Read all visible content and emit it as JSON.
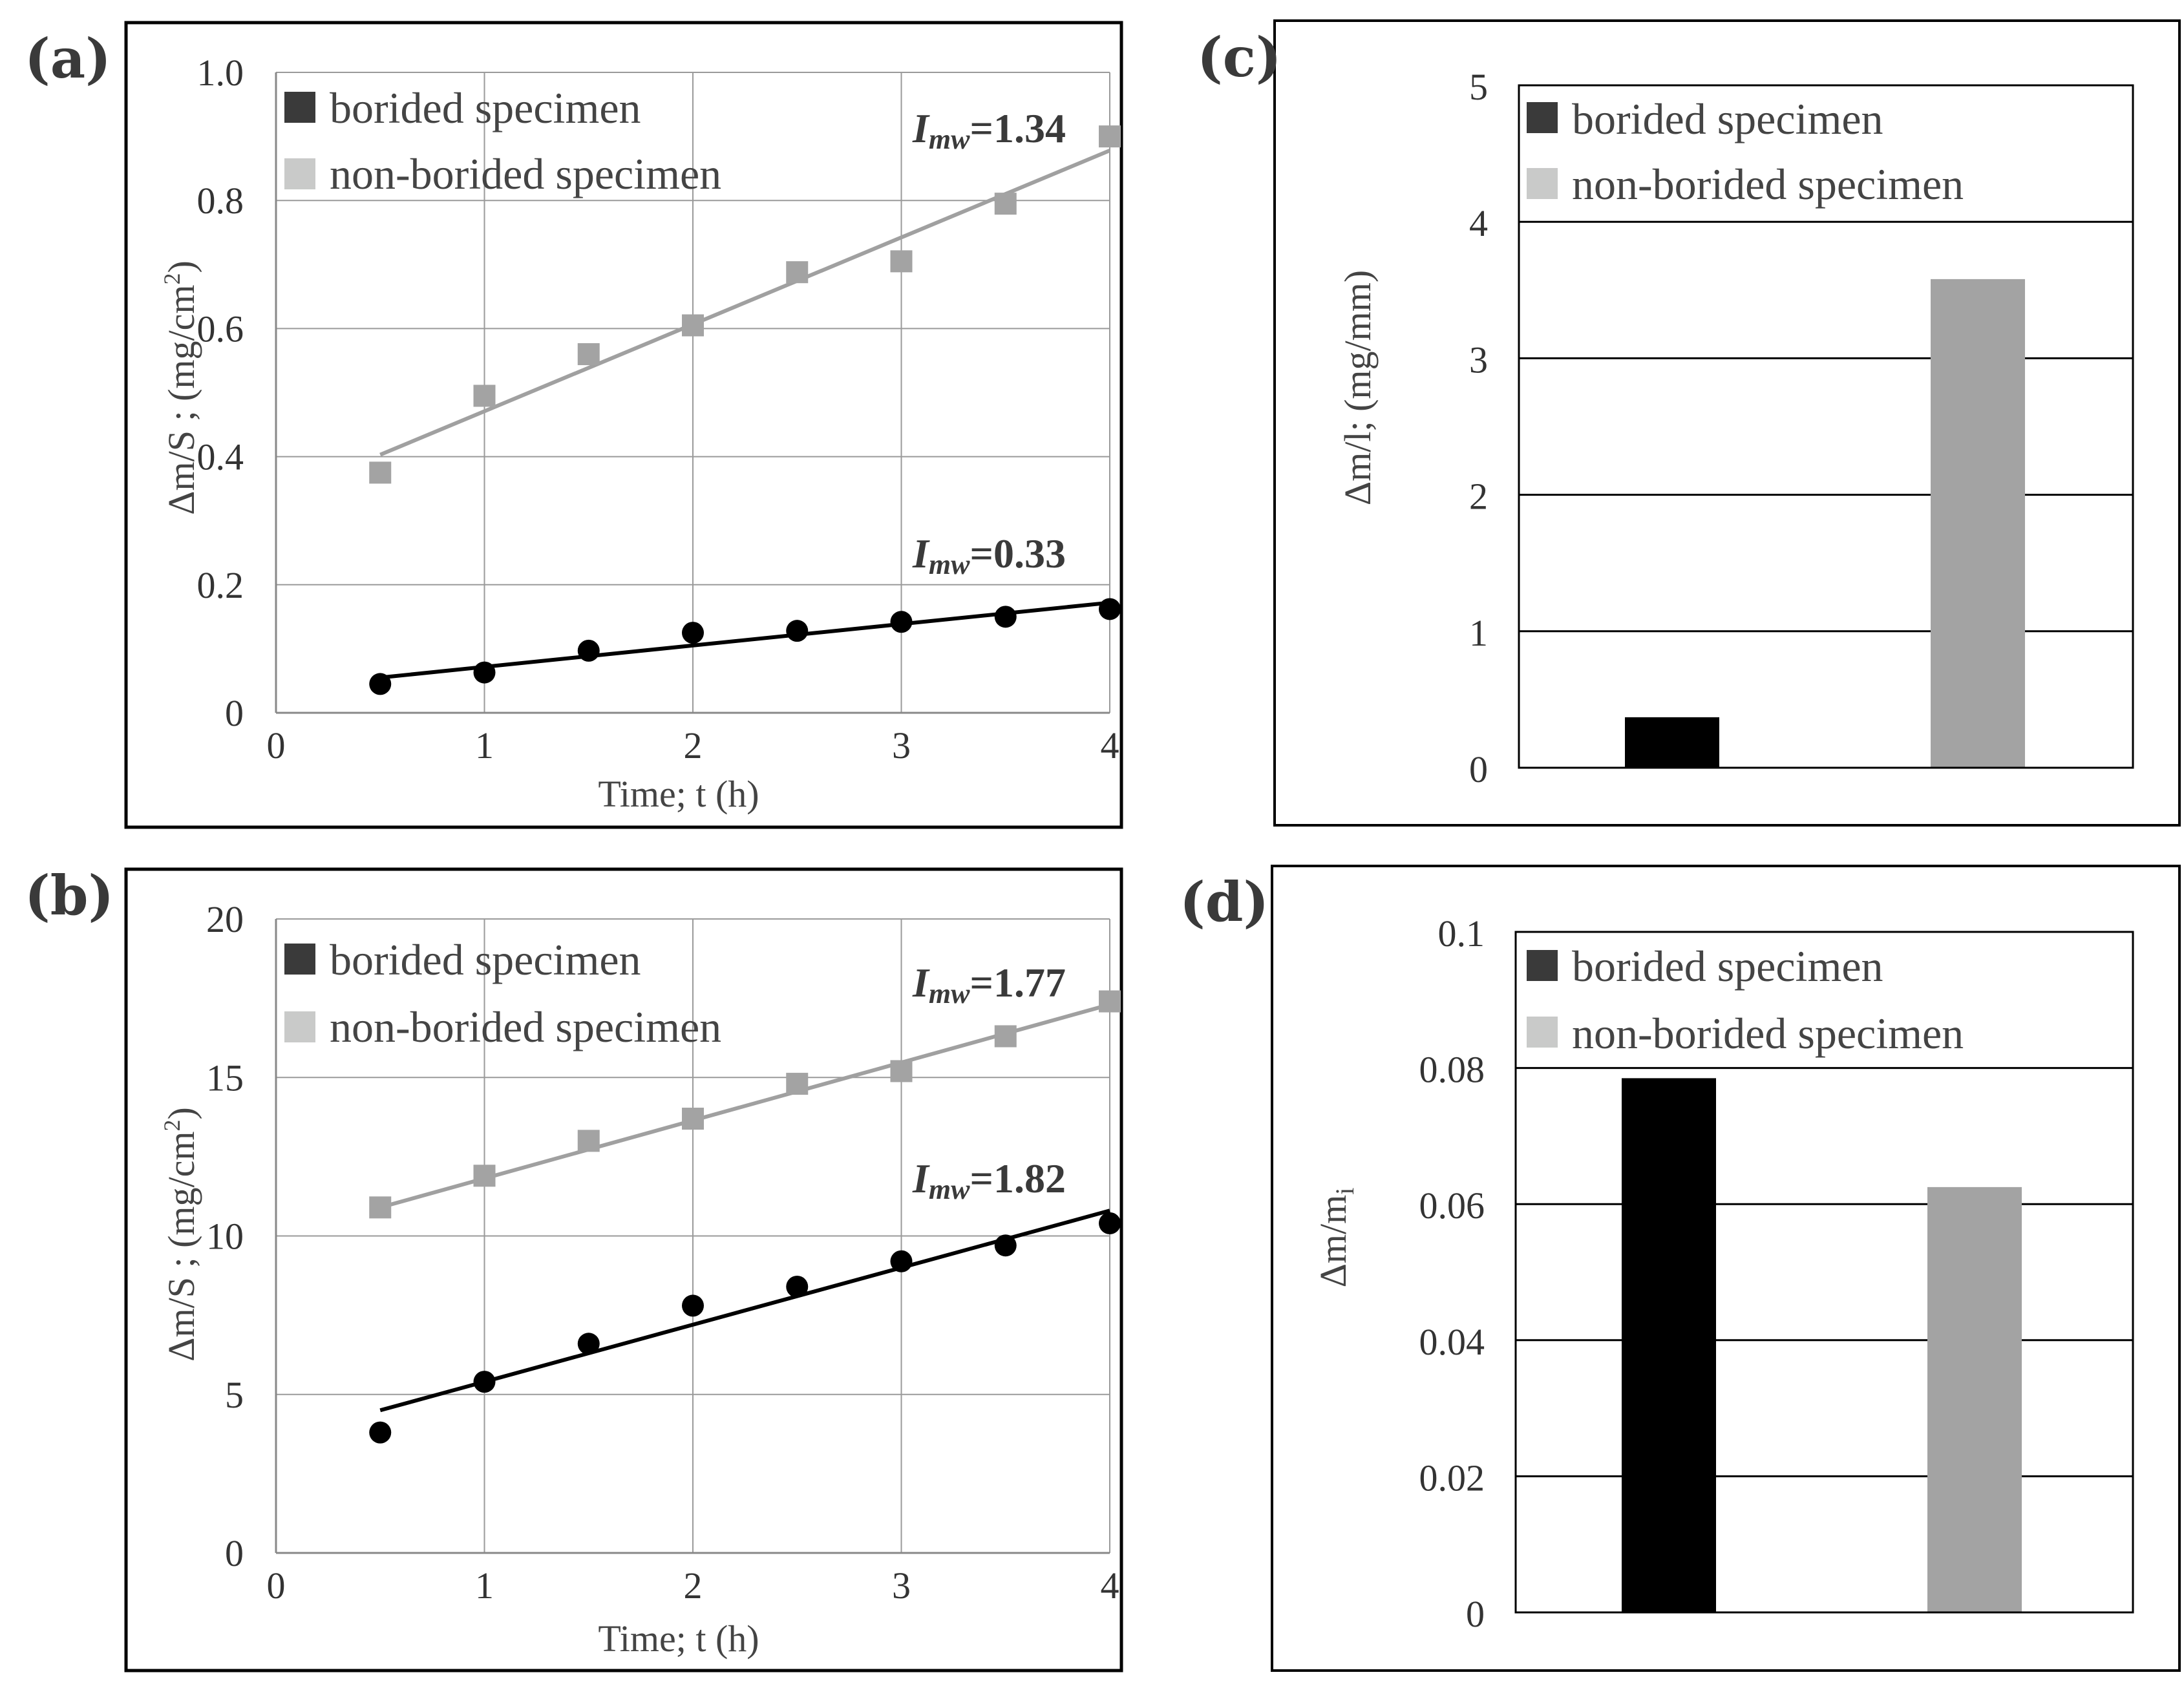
{
  "legend": {
    "series1": "borided specimen",
    "series2": "non-borided specimen",
    "color1": "#3a3a3a",
    "color2": "#c9cac9"
  },
  "colors": {
    "borided": "#000000",
    "nonborided": "#a3a3a3",
    "fitNonBorided": "#a0a0a0",
    "grid": "#9a9a9a"
  },
  "chart_data": [
    {
      "panel": "(a)",
      "type": "scatter",
      "xlabel": "Time; t (h)",
      "ylabel": "Δm/S ; (mg/cm",
      "ylabel_sup": "2",
      "ylabel_end": ")",
      "xlim": [
        0,
        4
      ],
      "ylim": [
        0,
        1.0
      ],
      "xticks": [
        "0",
        "1",
        "2",
        "3",
        "4"
      ],
      "yticks": [
        "0",
        "0.2",
        "0.4",
        "0.6",
        "0.8",
        "1.0"
      ],
      "x": [
        0.5,
        1,
        1.5,
        2,
        2.5,
        3,
        3.5,
        4
      ],
      "series": [
        {
          "name": "borided specimen",
          "values": [
            0.045,
            0.063,
            0.097,
            0.125,
            0.128,
            0.142,
            0.15,
            0.162
          ],
          "fit": [
            [
              0.5,
              0.055
            ],
            [
              4,
              0.172
            ]
          ],
          "annotation": {
            "var": "I",
            "sub": "mw",
            "value": "=0.33"
          }
        },
        {
          "name": "non-borided specimen",
          "values": [
            0.375,
            0.495,
            0.56,
            0.605,
            0.688,
            0.705,
            0.795,
            0.9
          ],
          "fit": [
            [
              0.5,
              0.403
            ],
            [
              4,
              0.878
            ]
          ],
          "annotation": {
            "var": "I",
            "sub": "mw",
            "value": "=1.34"
          }
        }
      ]
    },
    {
      "panel": "(b)",
      "type": "scatter",
      "xlabel": "Time; t (h)",
      "ylabel": "Δm/S ; (mg/cm",
      "ylabel_sup": "2",
      "ylabel_end": ")",
      "xlim": [
        0,
        4
      ],
      "ylim": [
        0,
        20
      ],
      "xticks": [
        "0",
        "1",
        "2",
        "3",
        "4"
      ],
      "yticks": [
        "0",
        "5",
        "10",
        "15",
        "20"
      ],
      "x": [
        0.5,
        1,
        1.5,
        2,
        2.5,
        3,
        3.5,
        4
      ],
      "series": [
        {
          "name": "borided specimen",
          "values": [
            3.8,
            5.4,
            6.6,
            7.8,
            8.4,
            9.2,
            9.7,
            10.4
          ],
          "fit": [
            [
              0.5,
              4.5
            ],
            [
              4,
              10.8
            ]
          ],
          "annotation": {
            "var": "I",
            "sub": "mw",
            "value": "=1.82"
          }
        },
        {
          "name": "non-borided specimen",
          "values": [
            10.9,
            11.9,
            13.0,
            13.7,
            14.8,
            15.2,
            16.3,
            17.4
          ],
          "fit": [
            [
              0.5,
              10.9
            ],
            [
              4,
              17.3
            ]
          ],
          "annotation": {
            "var": "I",
            "sub": "mw",
            "value": "=1.77"
          }
        }
      ]
    },
    {
      "panel": "(c)",
      "type": "bar",
      "ylabel": "Δm/l; (mg/mm)",
      "ylim": [
        0,
        5
      ],
      "yticks": [
        "0",
        "1",
        "2",
        "3",
        "4",
        "5"
      ],
      "categories": [
        "borided specimen",
        "non-borided specimen"
      ],
      "values": [
        0.37,
        3.58
      ]
    },
    {
      "panel": "(d)",
      "type": "bar",
      "ylabel": "Δm/m",
      "ylabel_sub": "i",
      "ylim": [
        0,
        0.1
      ],
      "yticks": [
        "0",
        "0.02",
        "0.04",
        "0.06",
        "0.08",
        "0.1"
      ],
      "categories": [
        "borided specimen",
        "non-borided specimen"
      ],
      "values": [
        0.0785,
        0.0625
      ]
    }
  ]
}
